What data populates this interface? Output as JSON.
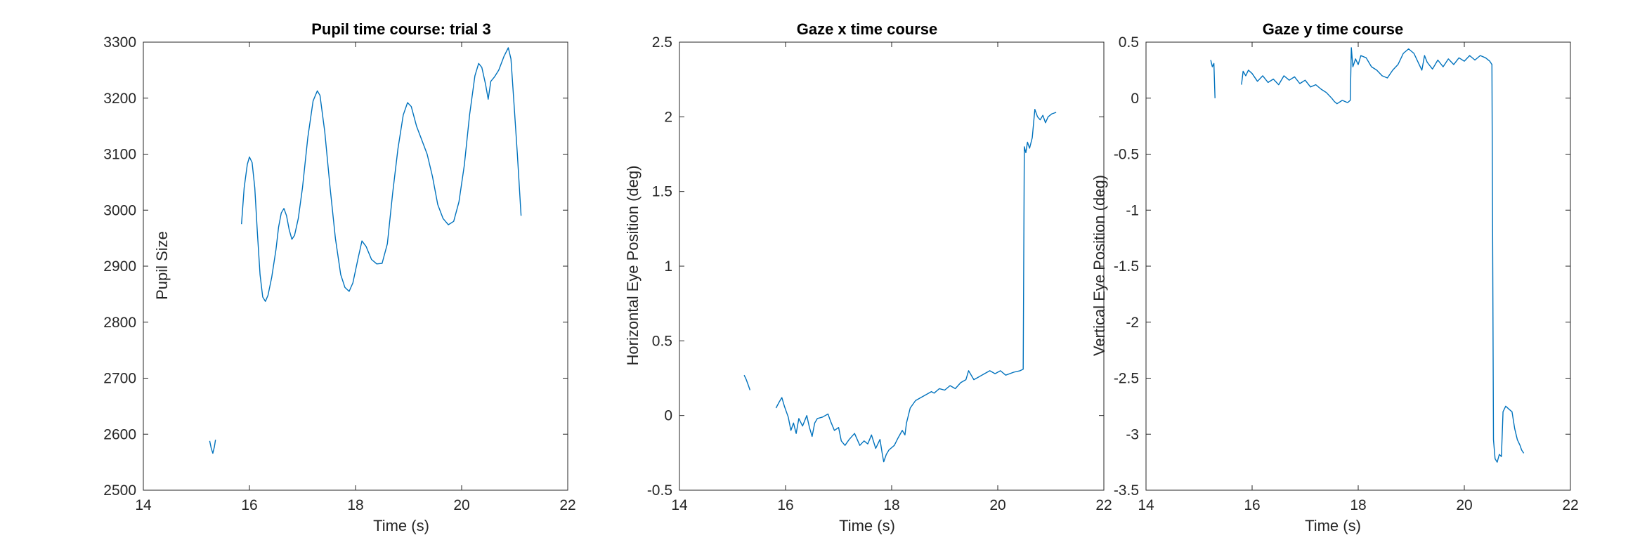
{
  "colors": {
    "series": "#0072BD",
    "axis": "#262626",
    "background": "#ffffff"
  },
  "chart_data": [
    {
      "type": "line",
      "title": "Pupil time course: trial 3",
      "xlabel": "Time (s)",
      "ylabel": "Pupil Size",
      "xlim": [
        14,
        22
      ],
      "ylim": [
        2500,
        3300
      ],
      "xticks": [
        14,
        16,
        18,
        20,
        22
      ],
      "yticks": [
        2500,
        2600,
        2700,
        2800,
        2900,
        3000,
        3100,
        3200,
        3300
      ],
      "grid": false,
      "series": [
        {
          "segments": [
            [
              [
                15.25,
                2588
              ],
              [
                15.28,
                2575
              ],
              [
                15.31,
                2566
              ],
              [
                15.34,
                2578
              ],
              [
                15.36,
                2590
              ]
            ],
            [
              [
                15.85,
                2975
              ],
              [
                15.9,
                3040
              ],
              [
                15.96,
                3082
              ],
              [
                16.0,
                3095
              ],
              [
                16.05,
                3085
              ],
              [
                16.1,
                3040
              ],
              [
                16.15,
                2960
              ],
              [
                16.2,
                2885
              ],
              [
                16.25,
                2845
              ],
              [
                16.3,
                2837
              ],
              [
                16.35,
                2848
              ],
              [
                16.42,
                2880
              ],
              [
                16.5,
                2930
              ],
              [
                16.55,
                2970
              ],
              [
                16.6,
                2995
              ],
              [
                16.65,
                3003
              ],
              [
                16.7,
                2990
              ],
              [
                16.75,
                2965
              ],
              [
                16.8,
                2948
              ],
              [
                16.85,
                2955
              ],
              [
                16.92,
                2985
              ],
              [
                17.0,
                3040
              ],
              [
                17.1,
                3130
              ],
              [
                17.2,
                3195
              ],
              [
                17.28,
                3213
              ],
              [
                17.33,
                3205
              ],
              [
                17.42,
                3140
              ],
              [
                17.52,
                3040
              ],
              [
                17.62,
                2950
              ],
              [
                17.72,
                2885
              ],
              [
                17.8,
                2862
              ],
              [
                17.88,
                2855
              ],
              [
                17.95,
                2870
              ],
              [
                18.05,
                2915
              ],
              [
                18.12,
                2945
              ],
              [
                18.2,
                2935
              ],
              [
                18.3,
                2912
              ],
              [
                18.4,
                2904
              ],
              [
                18.5,
                2905
              ],
              [
                18.6,
                2940
              ],
              [
                18.7,
                3030
              ],
              [
                18.8,
                3110
              ],
              [
                18.9,
                3170
              ],
              [
                18.98,
                3192
              ],
              [
                19.05,
                3185
              ],
              [
                19.15,
                3150
              ],
              [
                19.25,
                3125
              ],
              [
                19.35,
                3100
              ],
              [
                19.45,
                3060
              ],
              [
                19.55,
                3010
              ],
              [
                19.65,
                2985
              ],
              [
                19.75,
                2974
              ],
              [
                19.85,
                2980
              ],
              [
                19.95,
                3015
              ],
              [
                20.05,
                3080
              ],
              [
                20.15,
                3170
              ],
              [
                20.25,
                3240
              ],
              [
                20.32,
                3262
              ],
              [
                20.38,
                3255
              ],
              [
                20.45,
                3225
              ],
              [
                20.5,
                3198
              ],
              [
                20.55,
                3230
              ],
              [
                20.62,
                3238
              ],
              [
                20.7,
                3250
              ],
              [
                20.8,
                3275
              ],
              [
                20.88,
                3290
              ],
              [
                20.93,
                3270
              ],
              [
                20.98,
                3200
              ],
              [
                21.05,
                3100
              ],
              [
                21.12,
                2990
              ]
            ]
          ]
        }
      ]
    },
    {
      "type": "line",
      "title": "Gaze x time course",
      "xlabel": "Time (s)",
      "ylabel": "Horizontal Eye Position (deg)",
      "xlim": [
        14,
        22
      ],
      "ylim": [
        -0.5,
        2.5
      ],
      "xticks": [
        14,
        16,
        18,
        20,
        22
      ],
      "yticks": [
        -0.5,
        0,
        0.5,
        1,
        1.5,
        2,
        2.5
      ],
      "grid": false,
      "series": [
        {
          "segments": [
            [
              [
                15.22,
                0.27
              ],
              [
                15.26,
                0.24
              ],
              [
                15.3,
                0.2
              ],
              [
                15.33,
                0.17
              ]
            ],
            [
              [
                15.82,
                0.05
              ],
              [
                15.88,
                0.09
              ],
              [
                15.93,
                0.12
              ],
              [
                15.98,
                0.06
              ],
              [
                16.05,
                -0.01
              ],
              [
                16.1,
                -0.1
              ],
              [
                16.15,
                -0.05
              ],
              [
                16.2,
                -0.12
              ],
              [
                16.25,
                -0.02
              ],
              [
                16.32,
                -0.07
              ],
              [
                16.4,
                0.0
              ],
              [
                16.45,
                -0.08
              ],
              [
                16.5,
                -0.14
              ],
              [
                16.55,
                -0.05
              ],
              [
                16.6,
                -0.02
              ],
              [
                16.7,
                -0.01
              ],
              [
                16.8,
                0.01
              ],
              [
                16.85,
                -0.04
              ],
              [
                16.92,
                -0.1
              ],
              [
                17.0,
                -0.08
              ],
              [
                17.05,
                -0.17
              ],
              [
                17.12,
                -0.2
              ],
              [
                17.2,
                -0.16
              ],
              [
                17.3,
                -0.12
              ],
              [
                17.4,
                -0.2
              ],
              [
                17.48,
                -0.17
              ],
              [
                17.55,
                -0.19
              ],
              [
                17.62,
                -0.13
              ],
              [
                17.7,
                -0.22
              ],
              [
                17.78,
                -0.16
              ],
              [
                17.82,
                -0.25
              ],
              [
                17.85,
                -0.31
              ],
              [
                17.9,
                -0.26
              ],
              [
                17.95,
                -0.23
              ],
              [
                18.05,
                -0.2
              ],
              [
                18.12,
                -0.15
              ],
              [
                18.2,
                -0.1
              ],
              [
                18.25,
                -0.13
              ],
              [
                18.28,
                -0.05
              ],
              [
                18.35,
                0.05
              ],
              [
                18.45,
                0.1
              ],
              [
                18.55,
                0.12
              ],
              [
                18.65,
                0.14
              ],
              [
                18.75,
                0.16
              ],
              [
                18.8,
                0.15
              ],
              [
                18.9,
                0.18
              ],
              [
                19.0,
                0.17
              ],
              [
                19.1,
                0.2
              ],
              [
                19.2,
                0.18
              ],
              [
                19.3,
                0.22
              ],
              [
                19.4,
                0.24
              ],
              [
                19.45,
                0.3
              ],
              [
                19.55,
                0.24
              ],
              [
                19.65,
                0.26
              ],
              [
                19.75,
                0.28
              ],
              [
                19.85,
                0.3
              ],
              [
                19.95,
                0.28
              ],
              [
                20.05,
                0.3
              ],
              [
                20.15,
                0.27
              ],
              [
                20.3,
                0.29
              ],
              [
                20.42,
                0.3
              ],
              [
                20.48,
                0.31
              ],
              [
                20.5,
                1.8
              ],
              [
                20.53,
                1.76
              ],
              [
                20.56,
                1.83
              ],
              [
                20.6,
                1.79
              ],
              [
                20.65,
                1.86
              ],
              [
                20.7,
                2.05
              ],
              [
                20.75,
                2.0
              ],
              [
                20.8,
                1.98
              ],
              [
                20.85,
                2.01
              ],
              [
                20.9,
                1.96
              ],
              [
                20.95,
                2.0
              ],
              [
                21.02,
                2.02
              ],
              [
                21.1,
                2.03
              ]
            ]
          ]
        }
      ]
    },
    {
      "type": "line",
      "title": "Gaze y time course",
      "xlabel": "Time (s)",
      "ylabel": "Vertical Eye Position (deg)",
      "xlim": [
        14,
        22
      ],
      "ylim": [
        -3.5,
        0.5
      ],
      "xticks": [
        14,
        16,
        18,
        20,
        22
      ],
      "yticks": [
        -3.5,
        -3,
        -2.5,
        -2,
        -1.5,
        -1,
        -0.5,
        0,
        0.5
      ],
      "grid": false,
      "series": [
        {
          "segments": [
            [
              [
                15.22,
                0.34
              ],
              [
                15.25,
                0.28
              ],
              [
                15.28,
                0.31
              ],
              [
                15.3,
                0.0
              ]
            ],
            [
              [
                15.8,
                0.12
              ],
              [
                15.83,
                0.24
              ],
              [
                15.88,
                0.2
              ],
              [
                15.93,
                0.25
              ],
              [
                16.0,
                0.22
              ],
              [
                16.1,
                0.15
              ],
              [
                16.2,
                0.2
              ],
              [
                16.3,
                0.14
              ],
              [
                16.4,
                0.17
              ],
              [
                16.5,
                0.12
              ],
              [
                16.6,
                0.2
              ],
              [
                16.7,
                0.16
              ],
              [
                16.8,
                0.19
              ],
              [
                16.9,
                0.13
              ],
              [
                17.0,
                0.16
              ],
              [
                17.1,
                0.1
              ],
              [
                17.2,
                0.12
              ],
              [
                17.3,
                0.08
              ],
              [
                17.4,
                0.05
              ],
              [
                17.5,
                0.0
              ],
              [
                17.55,
                -0.03
              ],
              [
                17.6,
                -0.05
              ],
              [
                17.7,
                -0.02
              ],
              [
                17.8,
                -0.04
              ],
              [
                17.85,
                -0.02
              ],
              [
                17.87,
                0.45
              ],
              [
                17.9,
                0.28
              ],
              [
                17.95,
                0.35
              ],
              [
                18.0,
                0.3
              ],
              [
                18.05,
                0.38
              ],
              [
                18.15,
                0.36
              ],
              [
                18.25,
                0.28
              ],
              [
                18.35,
                0.25
              ],
              [
                18.45,
                0.2
              ],
              [
                18.55,
                0.18
              ],
              [
                18.65,
                0.25
              ],
              [
                18.75,
                0.3
              ],
              [
                18.85,
                0.4
              ],
              [
                18.95,
                0.44
              ],
              [
                19.05,
                0.4
              ],
              [
                19.15,
                0.3
              ],
              [
                19.2,
                0.25
              ],
              [
                19.25,
                0.38
              ],
              [
                19.3,
                0.32
              ],
              [
                19.4,
                0.26
              ],
              [
                19.5,
                0.34
              ],
              [
                19.6,
                0.28
              ],
              [
                19.7,
                0.35
              ],
              [
                19.8,
                0.3
              ],
              [
                19.9,
                0.36
              ],
              [
                20.0,
                0.33
              ],
              [
                20.1,
                0.38
              ],
              [
                20.2,
                0.34
              ],
              [
                20.3,
                0.38
              ],
              [
                20.4,
                0.36
              ],
              [
                20.48,
                0.33
              ],
              [
                20.52,
                0.3
              ],
              [
                20.55,
                -3.05
              ],
              [
                20.58,
                -3.22
              ],
              [
                20.62,
                -3.25
              ],
              [
                20.66,
                -3.18
              ],
              [
                20.7,
                -3.2
              ],
              [
                20.73,
                -2.8
              ],
              [
                20.78,
                -2.75
              ],
              [
                20.85,
                -2.78
              ],
              [
                20.9,
                -2.8
              ],
              [
                20.95,
                -2.95
              ],
              [
                21.0,
                -3.05
              ],
              [
                21.05,
                -3.1
              ],
              [
                21.08,
                -3.14
              ],
              [
                21.12,
                -3.17
              ]
            ]
          ]
        }
      ]
    }
  ]
}
